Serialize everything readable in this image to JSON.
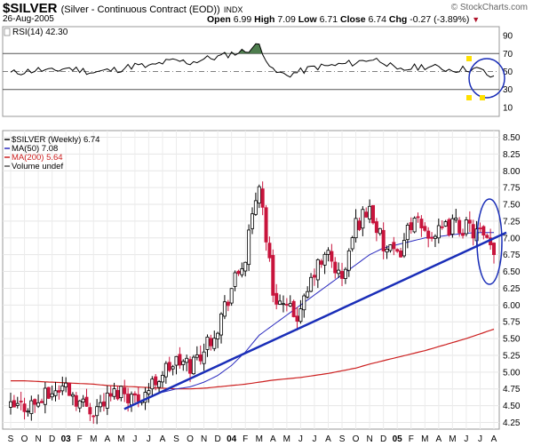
{
  "header": {
    "ticker": "$SILVER",
    "description": "(Silver - Continuous Contract (EOD))",
    "exchange": "INDX",
    "date": "26-Aug-2005",
    "watermark": "© StockCharts.com",
    "open_label": "Open",
    "open": "6.99",
    "high_label": "High",
    "high": "7.09",
    "low_label": "Low",
    "low": "6.71",
    "close_label": "Close",
    "close": "6.74",
    "chg_label": "Chg",
    "chg": "-0.27 (-3.89%)"
  },
  "colors": {
    "up_bar": "#000000",
    "down_bar": "#c8143c",
    "ma50": "#2b2bbf",
    "ma200": "#cc2020",
    "rsi_line": "#000000",
    "rsi_overbought_fill": "#4e7d4e",
    "trendline": "#1a2eb8",
    "annotation_circle": "#1a2eb8",
    "marker": "#ffe000"
  },
  "chart_data": [
    {
      "type": "line",
      "panel": "rsi",
      "legend": "RSI(14) 42.30",
      "yticks": [
        10,
        30,
        50,
        70,
        90
      ],
      "ylim": [
        0,
        100
      ],
      "reference_lines": [
        30,
        50,
        70
      ],
      "x": [
        "2002-09",
        "2002-10",
        "2002-11",
        "2002-12",
        "2003-01",
        "2003-02",
        "2003-03",
        "2003-04",
        "2003-05",
        "2003-06",
        "2003-07",
        "2003-08",
        "2003-09",
        "2003-10",
        "2003-11",
        "2003-12",
        "2004-01",
        "2004-02",
        "2004-03",
        "2004-04",
        "2004-05",
        "2004-06",
        "2004-07",
        "2004-08",
        "2004-09",
        "2004-10",
        "2004-11",
        "2004-12",
        "2005-01",
        "2005-02",
        "2005-03",
        "2005-04",
        "2005-05",
        "2005-06",
        "2005-07",
        "2005-08"
      ],
      "values": [
        48,
        50,
        52,
        50,
        54,
        52,
        49,
        51,
        53,
        57,
        55,
        60,
        62,
        60,
        64,
        66,
        70,
        73,
        80,
        50,
        46,
        50,
        55,
        56,
        58,
        60,
        64,
        62,
        50,
        54,
        56,
        54,
        52,
        53,
        52,
        42
      ]
    },
    {
      "type": "line",
      "panel": "price",
      "title": "$SILVER (Weekly) 6.74",
      "legend": [
        "$SILVER (Weekly) 6.74",
        "MA(50) 7.08",
        "MA(200) 5.64",
        "Volume undef"
      ],
      "xlabels": [
        "S",
        "O",
        "N",
        "D",
        "03",
        "F",
        "M",
        "A",
        "M",
        "J",
        "J",
        "A",
        "S",
        "O",
        "N",
        "D",
        "04",
        "F",
        "M",
        "A",
        "M",
        "J",
        "J",
        "A",
        "S",
        "O",
        "N",
        "D",
        "05",
        "F",
        "M",
        "A",
        "M",
        "J",
        "J",
        "A"
      ],
      "yticks": [
        4.25,
        4.5,
        4.75,
        5.0,
        5.25,
        5.5,
        5.75,
        6.0,
        6.25,
        6.5,
        6.75,
        7.0,
        7.25,
        7.5,
        7.75,
        8.0,
        8.25,
        8.5
      ],
      "ylim": [
        4.15,
        8.6
      ],
      "x": [
        "2002-09",
        "2002-10",
        "2002-11",
        "2002-12",
        "2003-01",
        "2003-02",
        "2003-03",
        "2003-04",
        "2003-05",
        "2003-06",
        "2003-07",
        "2003-08",
        "2003-09",
        "2003-10",
        "2003-11",
        "2003-12",
        "2004-01",
        "2004-02",
        "2004-03",
        "2004-04",
        "2004-05",
        "2004-06",
        "2004-07",
        "2004-08",
        "2004-09",
        "2004-10",
        "2004-11",
        "2004-12",
        "2005-01",
        "2005-02",
        "2005-03",
        "2005-04",
        "2005-05",
        "2005-06",
        "2005-07",
        "2005-08"
      ],
      "series": [
        {
          "name": "$SILVER (Weekly) 6.74",
          "values": [
            4.45,
            4.5,
            4.55,
            4.7,
            4.8,
            4.55,
            4.45,
            4.6,
            4.75,
            4.6,
            4.75,
            5.0,
            5.15,
            5.1,
            5.35,
            5.7,
            6.25,
            6.7,
            7.85,
            6.2,
            5.9,
            5.85,
            6.5,
            6.75,
            6.35,
            7.2,
            7.45,
            6.85,
            6.7,
            7.25,
            7.1,
            7.05,
            7.2,
            7.15,
            7.05,
            6.74
          ]
        },
        {
          "name": "MA(50) 7.08",
          "values": [
            null,
            null,
            null,
            null,
            null,
            null,
            null,
            null,
            null,
            null,
            null,
            4.7,
            4.75,
            4.78,
            4.85,
            4.95,
            5.1,
            5.3,
            5.55,
            5.7,
            5.85,
            6.0,
            6.15,
            6.3,
            6.45,
            6.6,
            6.75,
            6.85,
            6.9,
            6.95,
            7.0,
            7.02,
            7.05,
            7.07,
            7.08,
            7.08
          ]
        },
        {
          "name": "MA(200) 5.64",
          "values": [
            4.87,
            4.87,
            4.86,
            4.85,
            4.84,
            4.83,
            4.82,
            4.8,
            4.79,
            4.78,
            4.77,
            4.76,
            4.75,
            4.75,
            4.76,
            4.78,
            4.8,
            4.82,
            4.85,
            4.88,
            4.9,
            4.92,
            4.95,
            4.98,
            5.02,
            5.06,
            5.12,
            5.17,
            5.22,
            5.27,
            5.32,
            5.38,
            5.44,
            5.5,
            5.57,
            5.64
          ]
        }
      ],
      "trendline": {
        "from": [
          "2003-06",
          4.45
        ],
        "to": [
          "2005-08",
          7.08
        ]
      }
    }
  ]
}
